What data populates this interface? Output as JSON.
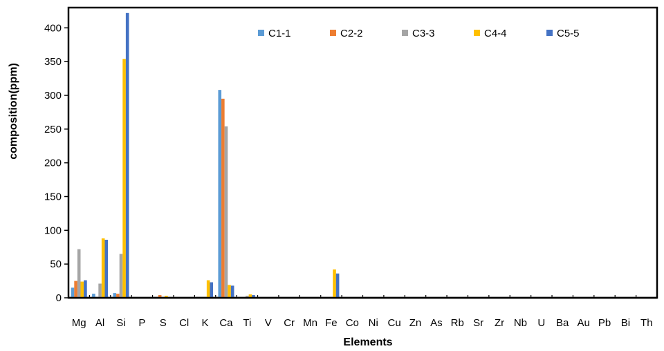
{
  "chart_data": {
    "type": "bar",
    "xlabel": "Elements",
    "ylabel": "composition(ppm)",
    "ylim": [
      0,
      430
    ],
    "yticks": [
      0,
      50,
      100,
      150,
      200,
      250,
      300,
      350,
      400
    ],
    "legend_position": "top-center",
    "grid": false,
    "categories": [
      "Mg",
      "Al",
      "Si",
      "P",
      "S",
      "Cl",
      "K",
      "Ca",
      "Ti",
      "V",
      "Cr",
      "Mn",
      "Fe",
      "Co",
      "Ni",
      "Cu",
      "Zn",
      "As",
      "Rb",
      "Sr",
      "Zr",
      "Nb",
      "U",
      "Ba",
      "Au",
      "Pb",
      "Bi",
      "Th"
    ],
    "series": [
      {
        "name": "C1-1",
        "color": "#5B9BD5",
        "values": [
          15,
          6,
          7,
          0,
          0,
          0,
          0,
          308,
          0,
          0,
          0,
          0,
          0,
          0,
          0,
          0,
          0,
          0,
          0,
          0,
          0,
          0,
          0,
          0,
          0,
          0,
          0,
          0
        ]
      },
      {
        "name": "C2-2",
        "color": "#ED7D31",
        "values": [
          25,
          0,
          6,
          0,
          4,
          0,
          0,
          295,
          0,
          0,
          0,
          0,
          0,
          0,
          0,
          0,
          0,
          0,
          0,
          0,
          0,
          0,
          0,
          0,
          0,
          0,
          0,
          0
        ]
      },
      {
        "name": "C3-3",
        "color": "#A5A5A5",
        "values": [
          72,
          21,
          65,
          0,
          0,
          0,
          0,
          254,
          3,
          0,
          0,
          0,
          0,
          0,
          0,
          0,
          0,
          0,
          0,
          0,
          0,
          0,
          0,
          0,
          0,
          0,
          0,
          0
        ]
      },
      {
        "name": "C4-4",
        "color": "#FFC000",
        "values": [
          24,
          88,
          354,
          0,
          3,
          0,
          26,
          19,
          5,
          0,
          0,
          0,
          42,
          0,
          0,
          0,
          0,
          0,
          0,
          0,
          0,
          0,
          0,
          0,
          0,
          0,
          0,
          0
        ]
      },
      {
        "name": "C5-5",
        "color": "#4472C4",
        "values": [
          26,
          86,
          422,
          0,
          0,
          0,
          23,
          18,
          4,
          0,
          0,
          0,
          36,
          0,
          0,
          0,
          0,
          0,
          0,
          0,
          0,
          0,
          0,
          0,
          0,
          0,
          0,
          0
        ]
      }
    ]
  }
}
